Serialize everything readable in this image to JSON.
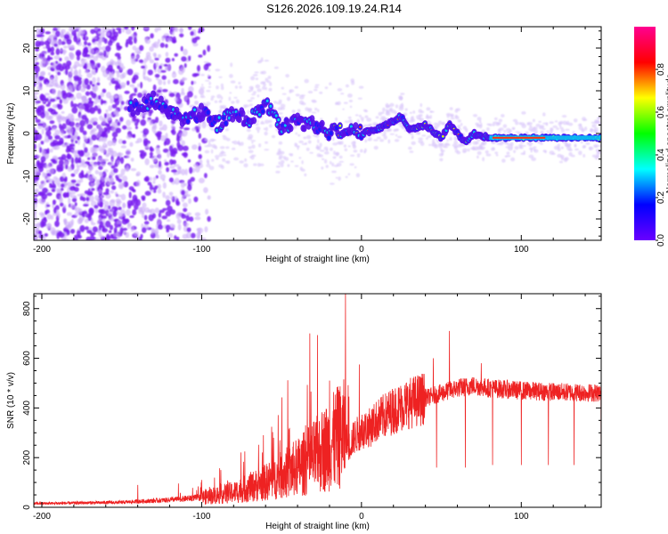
{
  "title": "S126.2026.109.19.24.R14",
  "chart_data": [
    {
      "id": "spectrogram",
      "type": "heatmap",
      "xlabel": "Height of straight line (km)",
      "ylabel": "Frequency (Hz)",
      "xlim": [
        -205,
        150
      ],
      "ylim": [
        -25,
        25
      ],
      "xticks": [
        -200,
        -100,
        0,
        100
      ],
      "yticks": [
        20,
        10,
        0,
        -10,
        -20
      ],
      "ridge": [
        [
          -140,
          6
        ],
        [
          -130,
          8
        ],
        [
          -120,
          5
        ],
        [
          -110,
          3
        ],
        [
          -100,
          5
        ],
        [
          -90,
          2
        ],
        [
          -80,
          5
        ],
        [
          -70,
          3
        ],
        [
          -60,
          7
        ],
        [
          -55,
          4
        ],
        [
          -50,
          1
        ],
        [
          -45,
          2
        ],
        [
          -40,
          3
        ],
        [
          -30,
          2
        ],
        [
          -20,
          0
        ],
        [
          -10,
          1
        ],
        [
          0,
          0
        ],
        [
          10,
          1
        ],
        [
          20,
          3
        ],
        [
          25,
          4
        ],
        [
          30,
          1
        ],
        [
          40,
          2
        ],
        [
          50,
          -1
        ],
        [
          55,
          2
        ],
        [
          60,
          0
        ],
        [
          65,
          -2
        ],
        [
          70,
          0
        ],
        [
          80,
          -1
        ],
        [
          100,
          -1
        ],
        [
          150,
          -1
        ]
      ],
      "colorbar": {
        "label": "Normalized spectral amplitude",
        "range": [
          0,
          1
        ],
        "ticks": [
          "0.0",
          "0.2",
          "0.4",
          "0.6",
          "0.8"
        ],
        "colors": [
          "#ffffff",
          "#6a00ff",
          "#0000ff",
          "#00ffff",
          "#00ff00",
          "#ffff00",
          "#ff0000",
          "#ff0090"
        ]
      }
    },
    {
      "id": "snr",
      "type": "line",
      "xlabel": "Height of straight line (km)",
      "ylabel": "SNR (10 * v/v)",
      "xlim": [
        -205,
        150
      ],
      "ylim": [
        0,
        860
      ],
      "xticks": [
        -200,
        -100,
        0,
        100
      ],
      "yticks": [
        0,
        200,
        400,
        600,
        800
      ],
      "color": "#ee2222",
      "envelope": [
        [
          -205,
          15
        ],
        [
          -150,
          20
        ],
        [
          -120,
          30
        ],
        [
          -100,
          40
        ],
        [
          -80,
          60
        ],
        [
          -60,
          100
        ],
        [
          -40,
          160
        ],
        [
          -30,
          200
        ],
        [
          -20,
          250
        ],
        [
          -15,
          280
        ],
        [
          -10,
          300
        ],
        [
          -8,
          240
        ],
        [
          -5,
          280
        ],
        [
          0,
          310
        ],
        [
          5,
          320
        ],
        [
          10,
          350
        ],
        [
          20,
          390
        ],
        [
          30,
          420
        ],
        [
          40,
          440
        ],
        [
          50,
          460
        ],
        [
          60,
          480
        ],
        [
          70,
          490
        ],
        [
          80,
          480
        ],
        [
          100,
          470
        ],
        [
          120,
          465
        ],
        [
          150,
          460
        ]
      ],
      "spikes": [
        [
          -140,
          90
        ],
        [
          -100,
          110
        ],
        [
          -55,
          280
        ],
        [
          -45,
          320
        ],
        [
          -35,
          330
        ],
        [
          -20,
          510
        ],
        [
          -10,
          860
        ],
        [
          45,
          600
        ],
        [
          55,
          710
        ],
        [
          75,
          580
        ]
      ],
      "dips": [
        [
          47,
          160
        ],
        [
          65,
          160
        ],
        [
          82,
          170
        ],
        [
          100,
          170
        ],
        [
          117,
          170
        ],
        [
          133,
          170
        ],
        [
          150,
          160
        ]
      ]
    }
  ]
}
